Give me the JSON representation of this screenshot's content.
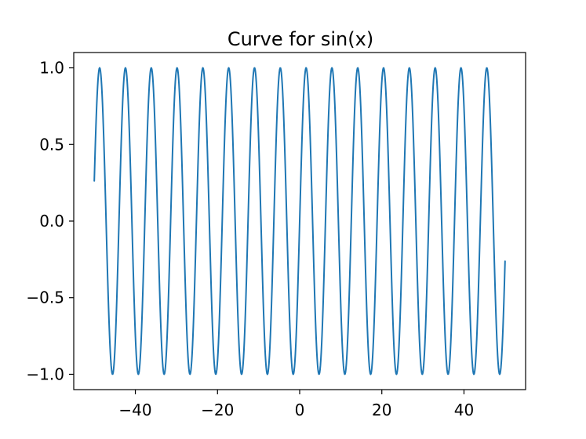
{
  "chart_data": {
    "type": "line",
    "title": "Curve for sin(x)",
    "xlabel": "",
    "ylabel": "",
    "function": "sin(x)",
    "x_range": [
      -50,
      50
    ],
    "xlim": [
      -55,
      55
    ],
    "ylim": [
      -1.1,
      1.1
    ],
    "xticks": [
      -40,
      -20,
      0,
      20,
      40
    ],
    "xtick_labels": [
      "−40",
      "−20",
      "0",
      "20",
      "40"
    ],
    "yticks": [
      1.0,
      0.5,
      0.0,
      -0.5,
      -1.0
    ],
    "ytick_labels": [
      "1.0",
      "0.5",
      "0.0",
      "−0.5",
      "−1.0"
    ],
    "grid": false,
    "series": [
      {
        "color": "#1f77b4",
        "x_start": -50,
        "x_end": 50,
        "samples": 1000,
        "y_start": 0.26,
        "y_end": -0.26
      }
    ]
  }
}
